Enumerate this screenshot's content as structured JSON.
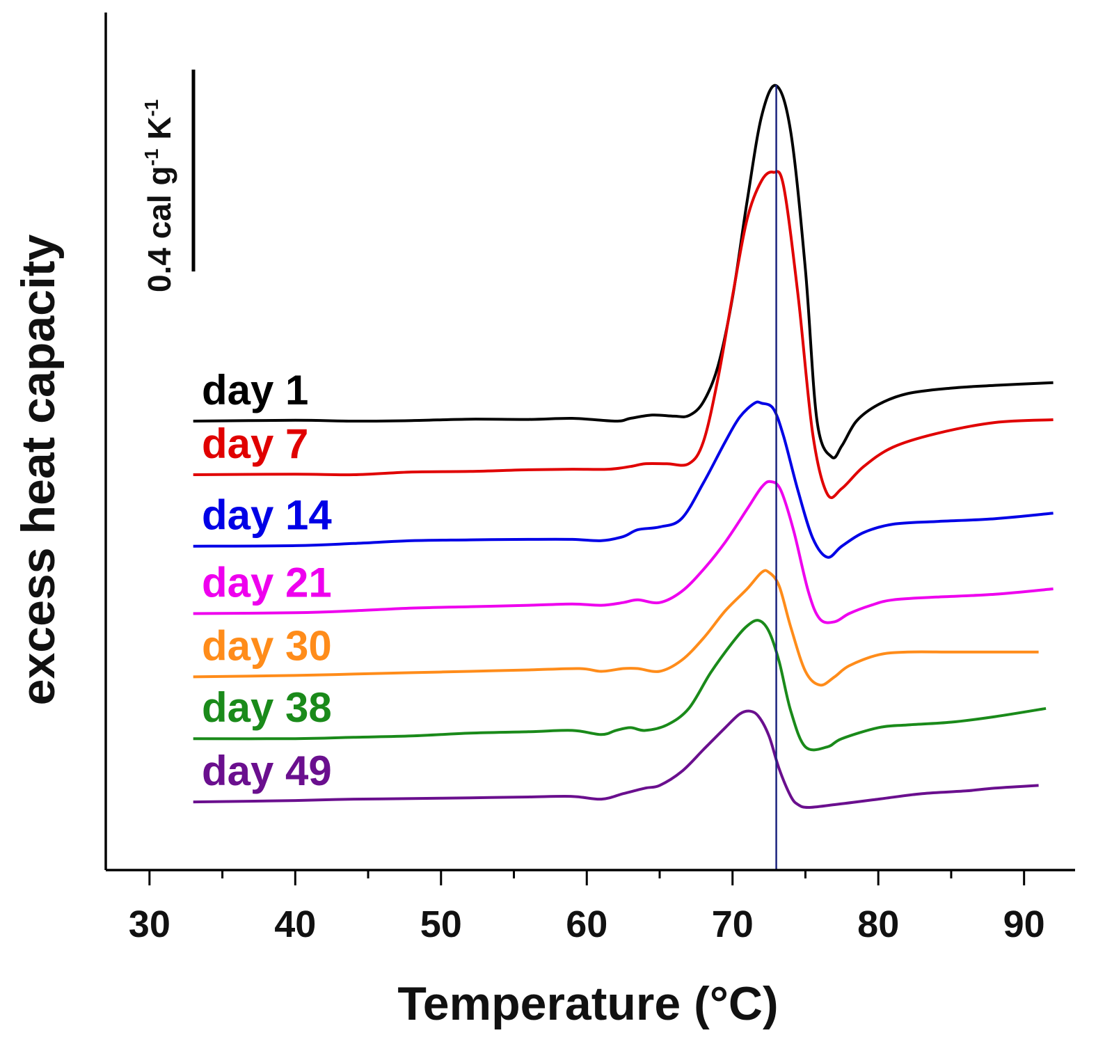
{
  "chart_data": {
    "type": "line",
    "xlabel": "Temperature (°C)",
    "ylabel": "excess heat capacity",
    "xlim": [
      27,
      93.5
    ],
    "xticks": [
      30,
      40,
      50,
      60,
      70,
      80,
      90
    ],
    "xtick_labels": [
      "30",
      "40",
      "50",
      "60",
      "70",
      "80",
      "90"
    ],
    "y_units": "cal g⁻¹ K⁻¹",
    "yticks_shown": false,
    "grid": false,
    "scale_bar": {
      "value": 0.4,
      "label": "0.4 cal g-1 K-1"
    },
    "reference_line": {
      "x": 73.0,
      "color": "#1a237e"
    },
    "curves_vertically_offset": true,
    "series": [
      {
        "name": "day 1",
        "color": "#000000",
        "offset": 0.0,
        "x": [
          33,
          40,
          44,
          48,
          52,
          56,
          59,
          62,
          63,
          64.5,
          66,
          67,
          68,
          69,
          70,
          71,
          72,
          73,
          74,
          75,
          75.8,
          76.8,
          77.5,
          78.5,
          80,
          82,
          85,
          88,
          92
        ],
        "y": [
          0.0,
          0.003,
          0.0,
          0.002,
          0.007,
          0.006,
          0.01,
          0.0,
          0.01,
          0.022,
          0.018,
          0.02,
          0.07,
          0.2,
          0.45,
          0.8,
          1.11,
          1.22,
          1.05,
          0.55,
          0.0,
          -0.13,
          -0.09,
          0.0,
          0.06,
          0.1,
          0.12,
          0.13,
          0.14
        ]
      },
      {
        "name": "day 7",
        "color": "#e00000",
        "offset": -0.195,
        "x": [
          33,
          40,
          44,
          48,
          52,
          56,
          59,
          61.5,
          63,
          64,
          65.5,
          67,
          68,
          69,
          70,
          71,
          72,
          72.8,
          73.5,
          74.5,
          75.5,
          76.5,
          77.5,
          79,
          81,
          84,
          88,
          92
        ],
        "y": [
          0.0,
          0.002,
          0.0,
          0.01,
          0.012,
          0.018,
          0.02,
          0.02,
          0.03,
          0.04,
          0.04,
          0.04,
          0.12,
          0.35,
          0.65,
          0.93,
          1.07,
          1.1,
          1.05,
          0.65,
          0.15,
          -0.07,
          -0.05,
          0.03,
          0.1,
          0.15,
          0.19,
          0.2
        ]
      },
      {
        "name": "day 14",
        "color": "#0000e6",
        "offset": -0.455,
        "x": [
          33,
          40,
          44,
          48,
          52,
          56,
          59,
          61,
          62.5,
          63.5,
          65,
          66.5,
          68,
          69.5,
          70.5,
          71.5,
          72,
          72.8,
          73.5,
          74.5,
          75.5,
          76.5,
          77.5,
          79,
          81,
          84,
          88,
          92
        ],
        "y": [
          0.0,
          0.002,
          0.01,
          0.02,
          0.023,
          0.025,
          0.025,
          0.02,
          0.035,
          0.06,
          0.07,
          0.1,
          0.23,
          0.38,
          0.47,
          0.52,
          0.52,
          0.5,
          0.4,
          0.2,
          0.03,
          -0.04,
          0.0,
          0.05,
          0.08,
          0.09,
          0.1,
          0.12
        ]
      },
      {
        "name": "day 21",
        "color": "#ee00ee",
        "offset": -0.7,
        "x": [
          33,
          40,
          44,
          48,
          52,
          56,
          59,
          61,
          62.5,
          63.5,
          65,
          66.5,
          68,
          69.5,
          71,
          72,
          72.6,
          73.3,
          74.2,
          75.2,
          76,
          77,
          78,
          79.5,
          81,
          84,
          88,
          92
        ],
        "y": [
          0.0,
          0.003,
          0.01,
          0.02,
          0.025,
          0.03,
          0.035,
          0.03,
          0.04,
          0.05,
          0.04,
          0.08,
          0.16,
          0.26,
          0.38,
          0.46,
          0.48,
          0.45,
          0.3,
          0.08,
          -0.02,
          -0.03,
          0.0,
          0.03,
          0.05,
          0.06,
          0.07,
          0.09
        ]
      },
      {
        "name": "day 30",
        "color": "#ff8c1a",
        "offset": -0.93,
        "x": [
          33,
          40,
          44,
          48,
          52,
          56,
          59.5,
          61,
          62.5,
          63.5,
          65,
          66.5,
          68,
          69.5,
          71,
          72,
          72.5,
          73.2,
          74,
          75,
          76,
          77,
          78,
          80,
          82,
          85,
          88,
          91
        ],
        "y": [
          0.0,
          0.005,
          0.01,
          0.015,
          0.02,
          0.025,
          0.03,
          0.02,
          0.03,
          0.03,
          0.02,
          0.06,
          0.14,
          0.24,
          0.32,
          0.38,
          0.38,
          0.33,
          0.18,
          0.02,
          -0.03,
          0.0,
          0.04,
          0.08,
          0.09,
          0.09,
          0.09,
          0.09
        ]
      },
      {
        "name": "day 38",
        "color": "#1a8a1a",
        "offset": -1.155,
        "x": [
          33,
          40,
          44,
          48,
          52,
          56,
          59,
          61,
          62,
          63,
          64,
          65.5,
          67,
          68.5,
          70,
          71,
          71.8,
          72.5,
          73.2,
          74,
          75,
          76.5,
          77.5,
          80,
          82,
          85,
          88,
          91.5
        ],
        "y": [
          0.0,
          0.0,
          0.005,
          0.01,
          0.02,
          0.025,
          0.03,
          0.015,
          0.03,
          0.04,
          0.03,
          0.05,
          0.11,
          0.24,
          0.35,
          0.41,
          0.43,
          0.39,
          0.28,
          0.1,
          -0.03,
          -0.03,
          0.0,
          0.04,
          0.05,
          0.06,
          0.08,
          0.11
        ]
      },
      {
        "name": "day 49",
        "color": "#6a0f8e",
        "offset": -1.385,
        "x": [
          33,
          40,
          44,
          48,
          52,
          56,
          59,
          61,
          62.5,
          64,
          65,
          66.5,
          68,
          69.5,
          70.5,
          71.2,
          71.8,
          72.5,
          73.2,
          74,
          74.5,
          75.2,
          77,
          80,
          83,
          86,
          88,
          91
        ],
        "y": [
          0.0,
          0.005,
          0.01,
          0.012,
          0.015,
          0.018,
          0.02,
          0.01,
          0.03,
          0.05,
          0.06,
          0.11,
          0.19,
          0.27,
          0.32,
          0.33,
          0.31,
          0.24,
          0.12,
          0.02,
          -0.01,
          -0.02,
          -0.01,
          0.01,
          0.03,
          0.04,
          0.05,
          0.06
        ]
      }
    ]
  }
}
